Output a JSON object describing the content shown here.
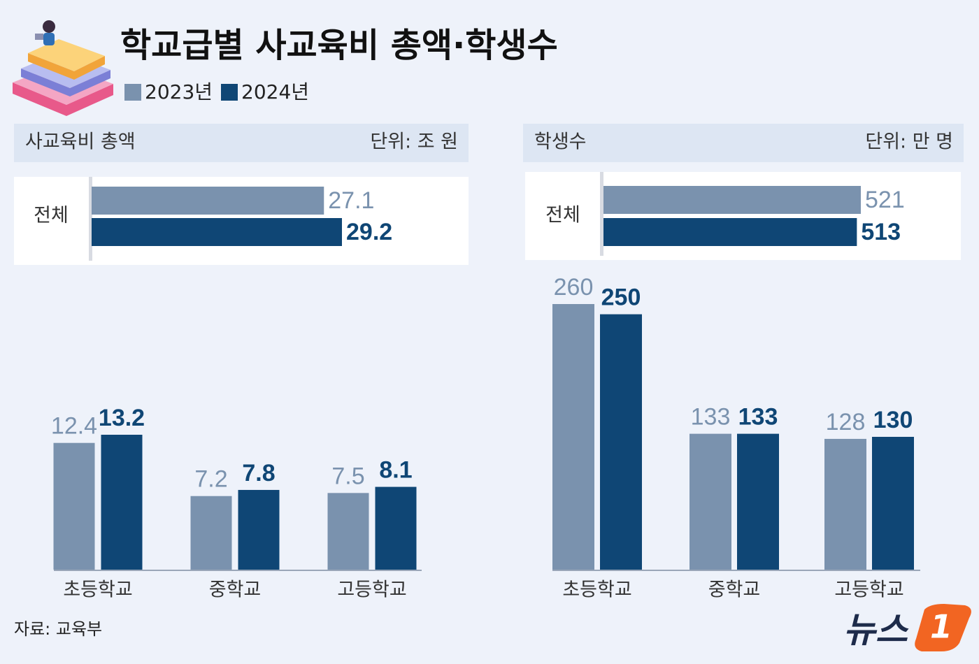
{
  "title": "학교급별 사교육비 총액·학생수",
  "source": "자료: 교육부",
  "logo": [
    "뉴스",
    "1"
  ],
  "chart_data": [
    {
      "type": "bar",
      "orientation": "horizontal",
      "title": "사교육비 총액",
      "unit": "단위: 조 원",
      "categories": [
        "전체"
      ],
      "series": [
        {
          "name": "2023년",
          "color": "#7a92ae",
          "values": [
            27.1
          ]
        },
        {
          "name": "2024년",
          "color": "#0f4675",
          "values": [
            29.2
          ]
        }
      ]
    },
    {
      "type": "bar",
      "orientation": "vertical",
      "categories": [
        "초등학교",
        "중학교",
        "고등학교"
      ],
      "series": [
        {
          "name": "2023년",
          "color": "#7a92ae",
          "values": [
            12.4,
            7.2,
            7.5
          ]
        },
        {
          "name": "2024년",
          "color": "#0f4675",
          "values": [
            13.2,
            7.8,
            8.1
          ]
        }
      ]
    },
    {
      "type": "bar",
      "orientation": "horizontal",
      "title": "학생수",
      "unit": "단위: 만 명",
      "categories": [
        "전체"
      ],
      "series": [
        {
          "name": "2023년",
          "color": "#7a92ae",
          "values": [
            521
          ]
        },
        {
          "name": "2024년",
          "color": "#0f4675",
          "values": [
            513
          ]
        }
      ]
    },
    {
      "type": "bar",
      "orientation": "vertical",
      "categories": [
        "초등학교",
        "중학교",
        "고등학교"
      ],
      "series": [
        {
          "name": "2023년",
          "color": "#7a92ae",
          "values": [
            260,
            133,
            128
          ]
        },
        {
          "name": "2024년",
          "color": "#0f4675",
          "values": [
            250,
            133,
            130
          ]
        }
      ]
    }
  ]
}
